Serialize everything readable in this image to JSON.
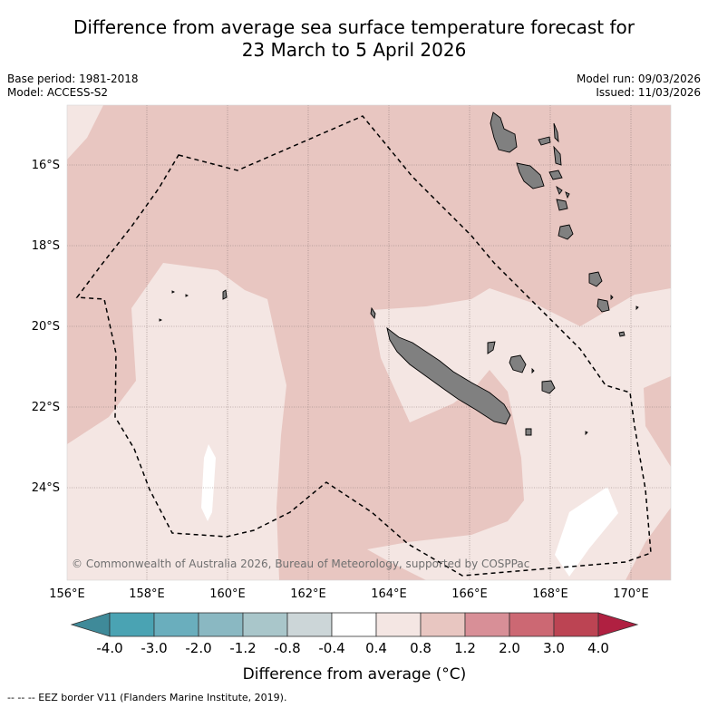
{
  "title": {
    "line1": "Difference from average sea surface temperature forecast for",
    "line2": "23 March to 5 April 2026"
  },
  "meta": {
    "base_period": "Base period: 1981-2018",
    "model": "Model: ACCESS-S2",
    "model_run": "Model run: 09/03/2026",
    "issued": "Issued: 11/03/2026"
  },
  "map": {
    "longitude_labels": [
      "156°E",
      "158°E",
      "160°E",
      "162°E",
      "164°E",
      "166°E",
      "168°E",
      "170°E"
    ],
    "latitude_labels": [
      "16°S",
      "18°S",
      "20°S",
      "22°S",
      "24°S"
    ],
    "copyright": "© Commonwealth of Australia 2026, Bureau of Meteorology, supported by COSPPac",
    "colors": {
      "anomaly_0_4_to_0_8": "#f4e6e3",
      "anomaly_0_8_to_1_2": "#e8c6c1",
      "neutral": "#ffffff",
      "land": "#808080"
    }
  },
  "colorbar": {
    "tick_labels": [
      "-4.0",
      "-3.0",
      "-2.0",
      "-1.2",
      "-0.8",
      "-0.4",
      "0.4",
      "0.8",
      "1.2",
      "2.0",
      "3.0",
      "4.0"
    ],
    "colors": [
      "#3f8a99",
      "#4aa3b3",
      "#6aaebd",
      "#8ab8c2",
      "#a9c6ca",
      "#ccd6d8",
      "#ffffff",
      "#f4e6e3",
      "#e8c6c1",
      "#d88f97",
      "#cc6873",
      "#bc4453",
      "#b02041"
    ],
    "title": "Difference from average (°C)"
  },
  "footnote": "--  --  -- EEZ border V11 (Flanders Marine Institute, 2019)."
}
